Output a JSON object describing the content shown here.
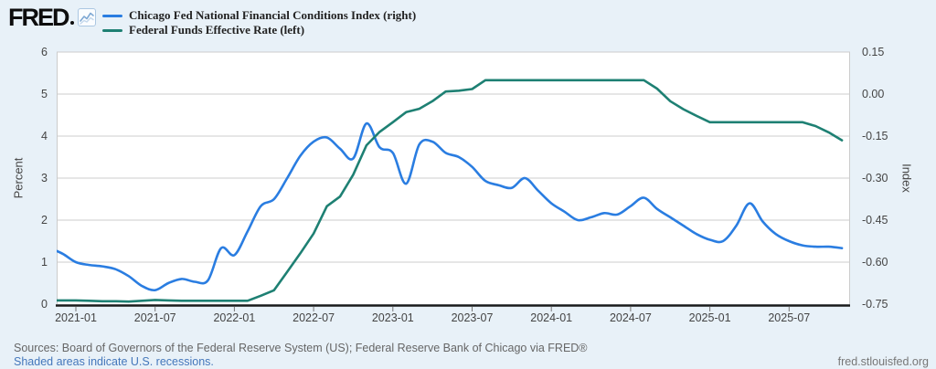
{
  "header": {
    "logo_text": "FRED",
    "logo_icon": "line-chart-icon",
    "legend": [
      {
        "label": "Chicago Fed National Financial Conditions Index (right)",
        "color": "#2a7de1"
      },
      {
        "label": "Federal Funds Effective Rate (left)",
        "color": "#1e8073"
      }
    ]
  },
  "footer": {
    "sources_line": "Sources: Board of Governors of the Federal Reserve System (US); Federal Reserve Bank of Chicago via FRED®",
    "recession_note": "Shaded areas indicate U.S. recessions.",
    "site": "fred.stlouisfed.org"
  },
  "colors": {
    "background": "#e8f1f8",
    "plot_background": "#ffffff",
    "gridline": "#cccccc",
    "axis_line": "#1a1a1a",
    "tick_text": "#444444",
    "nfci_line": "#2a7de1",
    "ffr_line": "#1e8073",
    "link": "#4477bb"
  },
  "chart_data": {
    "type": "line",
    "title": "",
    "grid": true,
    "legend_position": "top",
    "left_axis": {
      "title": "Percent",
      "ticks": [
        "6",
        "5",
        "4",
        "3",
        "2",
        "1",
        "0"
      ],
      "range": [
        0,
        6
      ]
    },
    "right_axis": {
      "title": "Index",
      "ticks": [
        "0.15",
        "0.00",
        "-0.15",
        "-0.30",
        "-0.45",
        "-0.60",
        "-0.75"
      ],
      "range": [
        -0.75,
        0.15
      ]
    },
    "x_ticks": [
      "2021-01",
      "2021-07",
      "2022-01",
      "2022-07",
      "2023-01",
      "2023-07",
      "2024-01",
      "2024-07",
      "2025-01",
      "2025-07"
    ],
    "months": [
      "2020-11",
      "2020-12",
      "2021-01",
      "2021-02",
      "2021-03",
      "2021-04",
      "2021-05",
      "2021-06",
      "2021-07",
      "2021-08",
      "2021-09",
      "2021-10",
      "2021-11",
      "2021-12",
      "2022-01",
      "2022-02",
      "2022-03",
      "2022-04",
      "2022-05",
      "2022-06",
      "2022-07",
      "2022-08",
      "2022-09",
      "2022-10",
      "2022-11",
      "2022-12",
      "2023-01",
      "2023-02",
      "2023-03",
      "2023-04",
      "2023-05",
      "2023-06",
      "2023-07",
      "2023-08",
      "2023-09",
      "2023-10",
      "2023-11",
      "2023-12",
      "2024-01",
      "2024-02",
      "2024-03",
      "2024-04",
      "2024-05",
      "2024-06",
      "2024-07",
      "2024-08",
      "2024-09",
      "2024-10",
      "2024-11",
      "2024-12",
      "2025-01",
      "2025-02",
      "2025-03",
      "2025-04",
      "2025-05",
      "2025-06",
      "2025-07",
      "2025-08",
      "2025-09",
      "2025-10",
      "2025-11"
    ],
    "series": [
      {
        "name": "Chicago Fed National Financial Conditions Index",
        "axis": "right",
        "color": "#2a7de1",
        "style": "smooth",
        "values": [
          -0.55,
          -0.57,
          -0.6,
          -0.61,
          -0.615,
          -0.625,
          -0.65,
          -0.685,
          -0.7,
          -0.675,
          -0.66,
          -0.67,
          -0.665,
          -0.55,
          -0.575,
          -0.49,
          -0.4,
          -0.375,
          -0.3,
          -0.22,
          -0.17,
          -0.155,
          -0.195,
          -0.23,
          -0.105,
          -0.19,
          -0.21,
          -0.32,
          -0.18,
          -0.17,
          -0.21,
          -0.225,
          -0.26,
          -0.31,
          -0.325,
          -0.335,
          -0.3,
          -0.345,
          -0.39,
          -0.42,
          -0.45,
          -0.44,
          -0.425,
          -0.43,
          -0.4,
          -0.37,
          -0.41,
          -0.44,
          -0.47,
          -0.5,
          -0.52,
          -0.525,
          -0.47,
          -0.39,
          -0.455,
          -0.5,
          -0.525,
          -0.54,
          -0.545,
          -0.545,
          -0.55
        ]
      },
      {
        "name": "Federal Funds Effective Rate",
        "axis": "left",
        "color": "#1e8073",
        "style": "linear",
        "values": [
          0.09,
          0.09,
          0.09,
          0.08,
          0.07,
          0.07,
          0.06,
          0.08,
          0.1,
          0.09,
          0.08,
          0.08,
          0.08,
          0.08,
          0.08,
          0.08,
          0.2,
          0.33,
          0.77,
          1.21,
          1.68,
          2.33,
          2.56,
          3.08,
          3.78,
          4.1,
          4.33,
          4.57,
          4.65,
          4.83,
          5.06,
          5.08,
          5.12,
          5.33,
          5.33,
          5.33,
          5.33,
          5.33,
          5.33,
          5.33,
          5.33,
          5.33,
          5.33,
          5.33,
          5.33,
          5.33,
          5.13,
          4.83,
          4.64,
          4.48,
          4.33,
          4.33,
          4.33,
          4.33,
          4.33,
          4.33,
          4.33,
          4.33,
          4.24,
          4.09,
          3.9
        ]
      }
    ]
  }
}
